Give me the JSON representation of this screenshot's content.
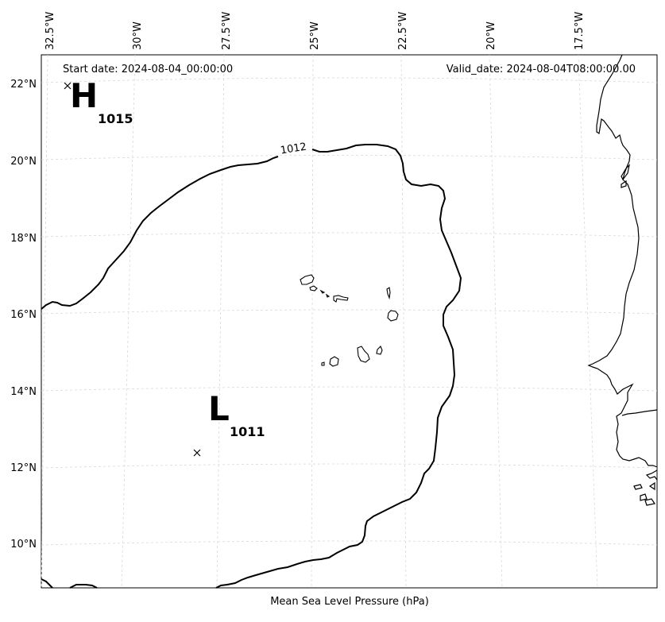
{
  "header": {
    "start_date": "Start date: 2024-08-04_00:00:00",
    "valid_date": "Valid_date: 2024-08-04T08:00:00.00"
  },
  "footer": {
    "caption": "Mean Sea Level Pressure (hPa)"
  },
  "axes": {
    "longitude_labels": [
      "32.5°W",
      "30°W",
      "27.5°W",
      "25°W",
      "22.5°W",
      "20°W",
      "17.5°W"
    ],
    "latitude_labels": [
      "22°N",
      "20°N",
      "18°N",
      "16°N",
      "14°N",
      "12°N",
      "10°N"
    ]
  },
  "pressure_centers": {
    "high": {
      "letter": "H",
      "value": "1015"
    },
    "low": {
      "letter": "L",
      "value": "1011"
    }
  },
  "contour": {
    "label": "1012"
  }
}
